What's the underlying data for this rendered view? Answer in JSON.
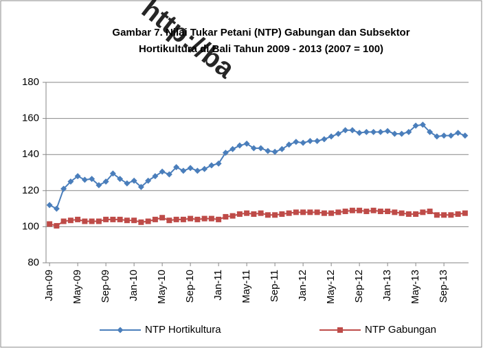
{
  "chart_data": {
    "type": "line",
    "title": [
      "Gambar 7. Nilai Tukar Petani (NTP) Gabungan dan Subsektor",
      "Hortikultura di Bali Tahun 2009 - 2013 (2007 = 100)"
    ],
    "watermark": "http://ba",
    "categories": [
      "Jan-09",
      null,
      null,
      null,
      "May-09",
      null,
      null,
      null,
      "Sep-09",
      null,
      null,
      null,
      "Jan-10",
      null,
      null,
      null,
      "May-10",
      null,
      null,
      null,
      "Sep-10",
      null,
      null,
      null,
      "Jan-11",
      null,
      null,
      null,
      "May-11",
      null,
      null,
      null,
      "Sep-11",
      null,
      null,
      null,
      "Jan-12",
      null,
      null,
      null,
      "May-12",
      null,
      null,
      null,
      "Sep-12",
      null,
      null,
      null,
      "Jan-13",
      null,
      null,
      null,
      "May-13",
      null,
      null,
      null,
      "Sep-13",
      null,
      null,
      null
    ],
    "series": [
      {
        "name": "NTP Hortikultura",
        "color": "#4a7ebb",
        "marker": "diamond",
        "values": [
          112,
          110,
          121,
          125,
          128,
          126,
          126.5,
          123,
          125,
          129.5,
          126.5,
          124,
          125.5,
          122,
          125.5,
          128,
          130.5,
          129,
          133,
          131,
          132.5,
          131,
          132,
          134,
          135,
          141,
          143,
          145,
          146,
          143.5,
          143.5,
          142,
          141.5,
          143,
          145.5,
          147,
          146.5,
          147.5,
          147.5,
          148.5,
          150,
          151.5,
          153.5,
          153.5,
          152,
          152.5,
          152.5,
          152.5,
          153,
          151.5,
          151.5,
          152.5,
          156,
          156.5,
          152.5,
          150,
          150.5,
          150.5,
          152,
          150.5
        ]
      },
      {
        "name": "NTP Gabungan",
        "color": "#be4b48",
        "marker": "square",
        "values": [
          101.5,
          100.5,
          103,
          103.5,
          104,
          103,
          103,
          103,
          104,
          104,
          104,
          103.5,
          103.5,
          102.5,
          103,
          104,
          105,
          103.5,
          104,
          104,
          104.5,
          104,
          104.5,
          104.5,
          104,
          105.5,
          106,
          107,
          107.5,
          107,
          107.5,
          106.5,
          106.5,
          107,
          107.5,
          108,
          108,
          108,
          108,
          107.5,
          107.5,
          108,
          108.5,
          109,
          109,
          108.5,
          109,
          108.5,
          108.5,
          108,
          107.5,
          107,
          107,
          108,
          108.5,
          106.5,
          106.5,
          106.5,
          107,
          107.5
        ]
      }
    ],
    "ylim": [
      80,
      180
    ],
    "yticks": [
      80,
      100,
      120,
      140,
      160,
      180
    ],
    "grid": true,
    "legend": "bottom"
  }
}
